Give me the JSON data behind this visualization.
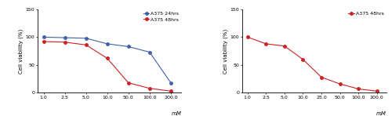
{
  "left_chart": {
    "x_labels": [
      "1.0",
      "2.5",
      "5.0",
      "10.0",
      "50.0",
      "100.0",
      "200.0"
    ],
    "x_vals": [
      0,
      1,
      2,
      3,
      4,
      5,
      6
    ],
    "series_24h": {
      "label": "A375 24hrs",
      "color": "#4060a8",
      "marker": "o",
      "values": [
        100,
        99,
        98,
        88,
        83,
        73,
        18
      ]
    },
    "series_48h": {
      "label": "A375 48hrs",
      "color": "#cc2222",
      "marker": "o",
      "values": [
        92,
        91,
        86,
        62,
        18,
        8,
        3
      ]
    },
    "ylabel": "Cell viability (%)",
    "xlabel": "mM",
    "ylim": [
      0,
      150
    ],
    "yticks": [
      0,
      50,
      100,
      150
    ]
  },
  "right_chart": {
    "x_labels": [
      "1.0",
      "2.5",
      "5.0",
      "10.0",
      "25.0",
      "50.0",
      "100.0",
      "200.0"
    ],
    "x_vals": [
      0,
      1,
      2,
      3,
      4,
      5,
      6,
      7
    ],
    "series_48h": {
      "label": "A375 48hrs",
      "color": "#cc2222",
      "marker": "o",
      "values": [
        100,
        88,
        84,
        60,
        28,
        16,
        7,
        3
      ]
    },
    "ylabel": "Cell viability (%)",
    "xlabel": "mM",
    "ylim": [
      0,
      150
    ],
    "yticks": [
      0,
      50,
      100,
      150
    ]
  },
  "bg_color": "#ffffff",
  "tick_fontsize": 4.5,
  "label_fontsize": 5.0,
  "legend_fontsize": 4.5,
  "linewidth": 0.8,
  "markersize": 2.5
}
